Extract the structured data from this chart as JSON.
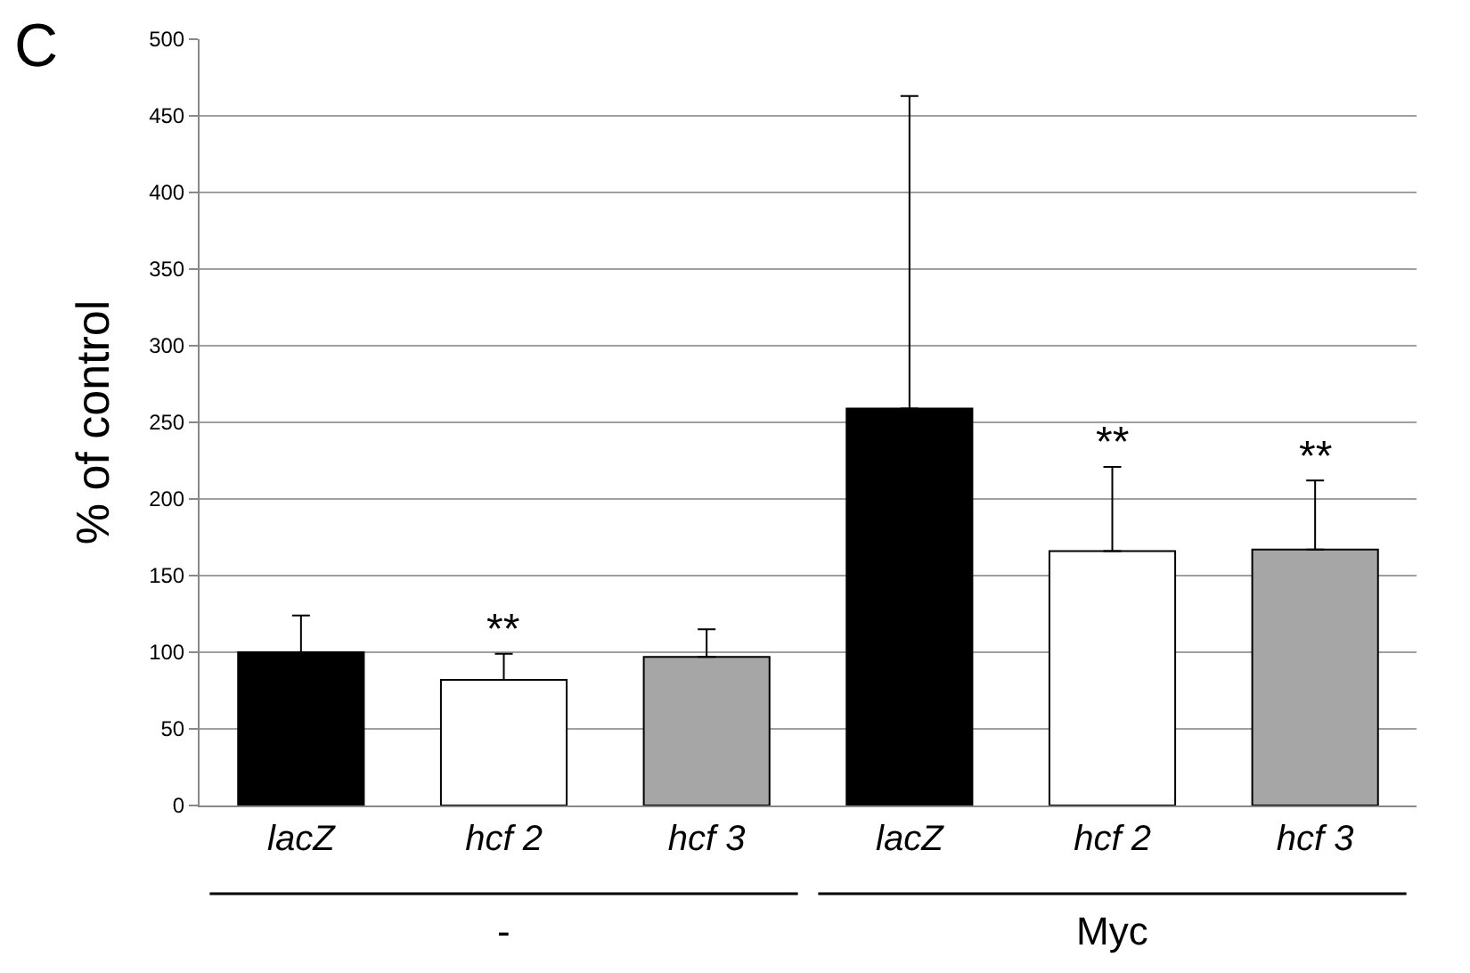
{
  "chart_data": {
    "type": "bar",
    "ylabel": "% of control",
    "categories": [
      "lacZ",
      "hcf 2",
      "hcf 3",
      "lacZ",
      "hcf 2",
      "hcf 3"
    ],
    "values": [
      100,
      82,
      97,
      259,
      166,
      167
    ],
    "colors": [
      "#000000",
      "#ffffff",
      "#a6a6a6",
      "#000000",
      "#ffffff",
      "#a6a6a6"
    ],
    "errors": [
      [
        100,
        124
      ],
      [
        82,
        99
      ],
      [
        97,
        115
      ],
      [
        259,
        463
      ],
      [
        166,
        221
      ],
      [
        167,
        212
      ]
    ],
    "ylim": [
      0,
      500
    ],
    "yticks": [
      0,
      50,
      100,
      150,
      200,
      250,
      300,
      350,
      400,
      450,
      500
    ],
    "grid": "y",
    "legend": false,
    "annotations": [
      "C",
      "**",
      "**",
      "**",
      "-",
      "Myc"
    ]
  }
}
